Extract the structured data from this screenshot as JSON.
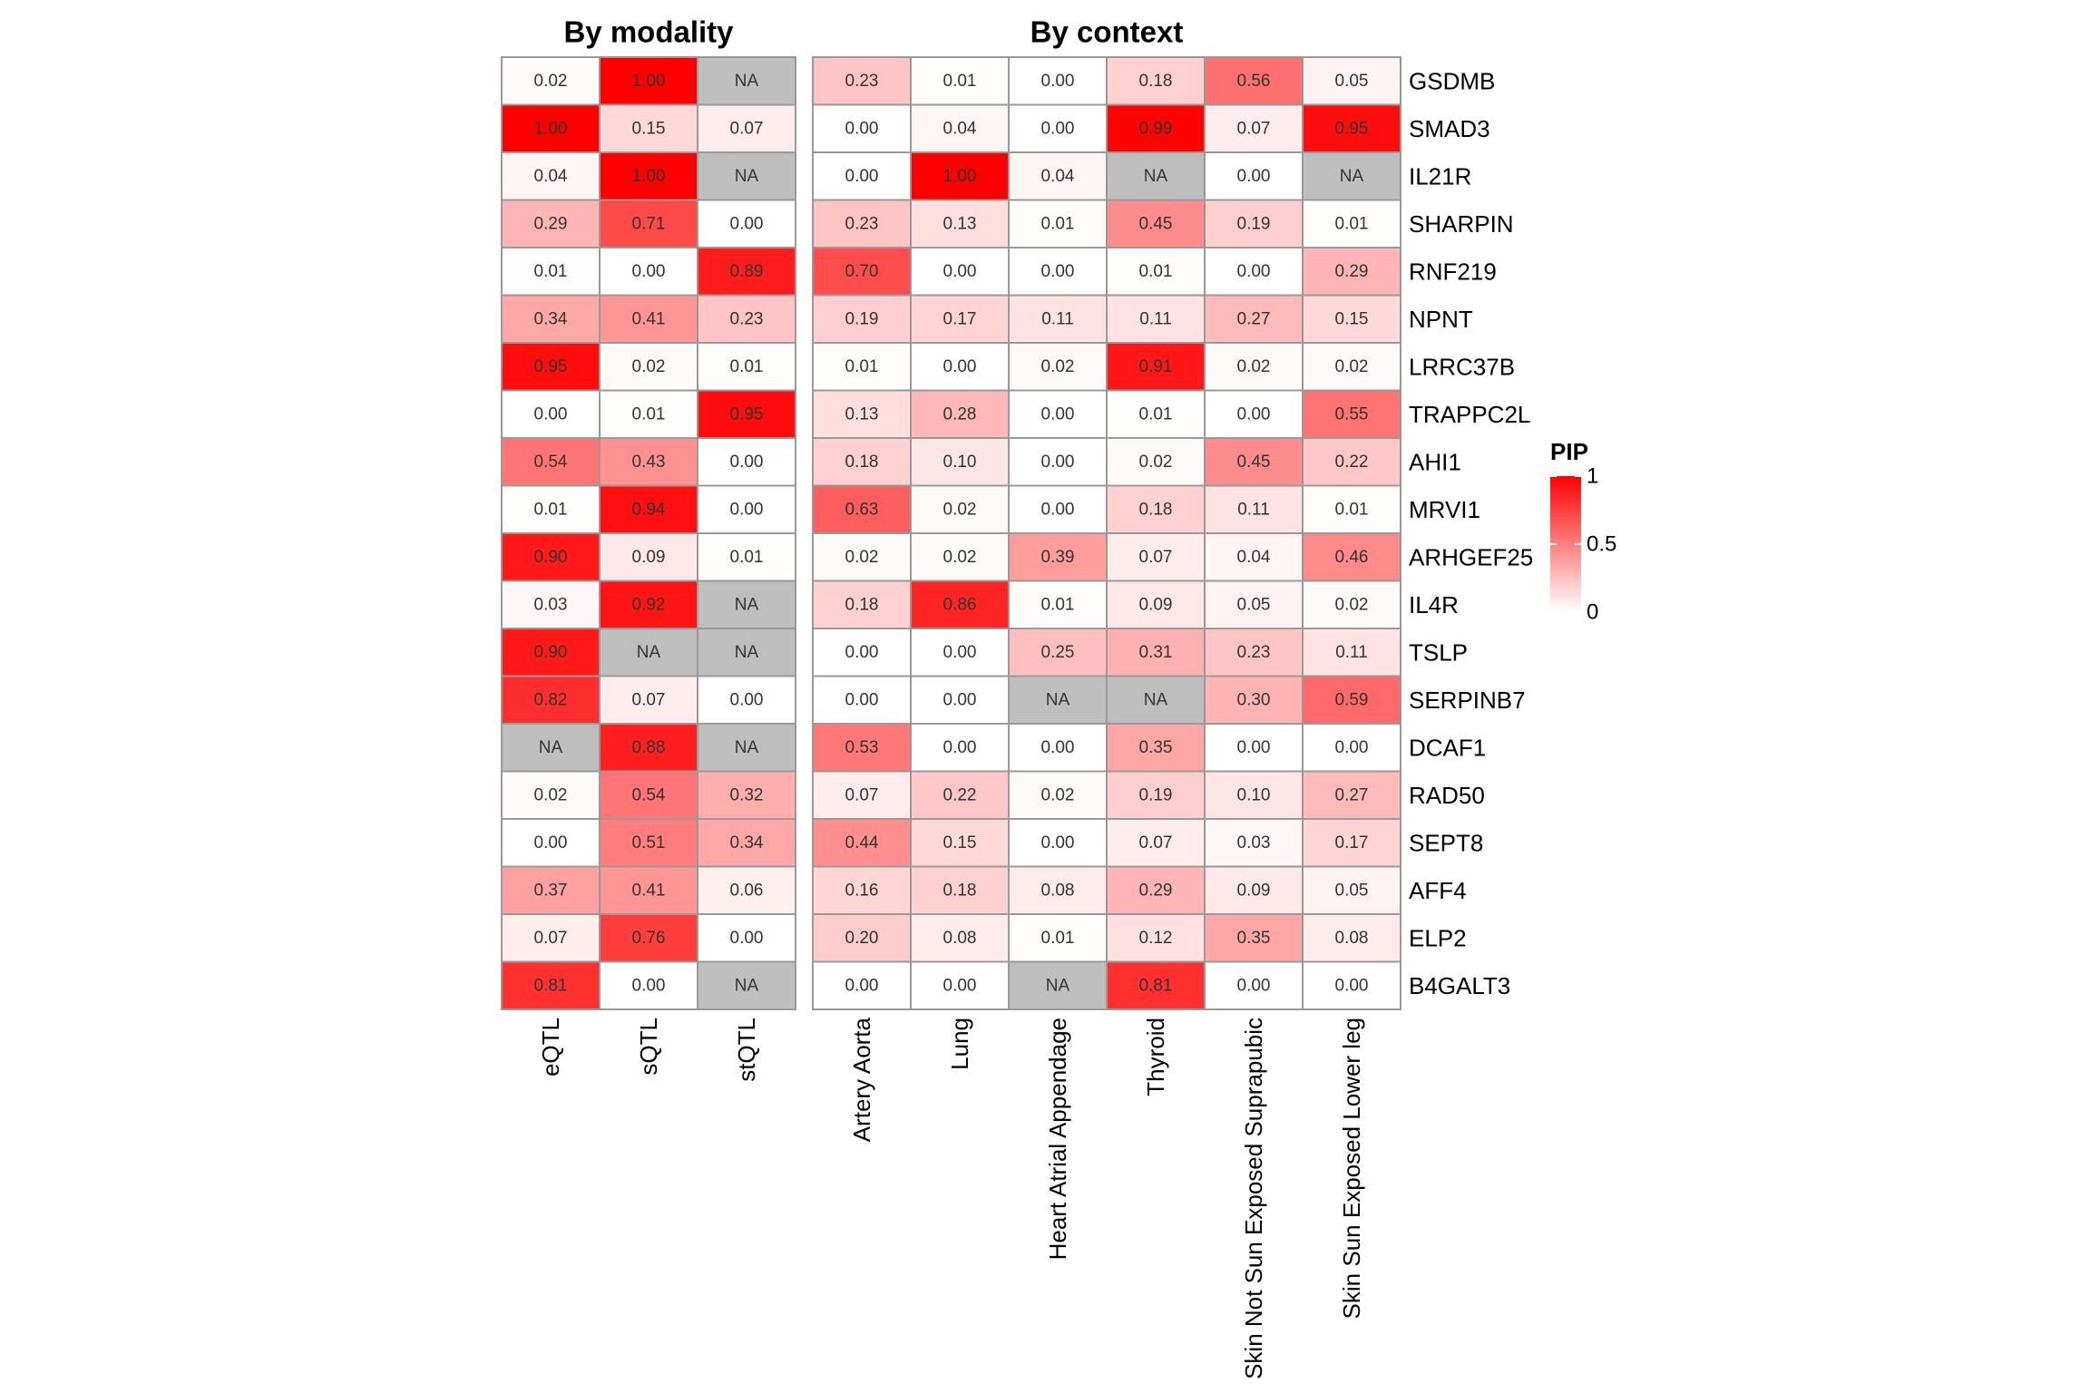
{
  "chart_data": {
    "type": "heatmap",
    "legend": {
      "title": "PIP",
      "ticks": [
        "1",
        "0.5",
        "0"
      ],
      "range": [
        0,
        1
      ],
      "low_color": "#ffffff",
      "high_color": "#ff0000",
      "na_color": "#bebebe",
      "placement": "right"
    },
    "genes": [
      "GSDMB",
      "SMAD3",
      "IL21R",
      "SHARPIN",
      "RNF219",
      "NPNT",
      "LRRC37B",
      "TRAPPC2L",
      "AHI1",
      "MRVI1",
      "ARHGEF25",
      "IL4R",
      "TSLP",
      "SERPINB7",
      "DCAF1",
      "RAD50",
      "SEPT8",
      "AFF4",
      "ELP2",
      "B4GALT3"
    ],
    "panels": [
      {
        "title": "By modality",
        "columns": [
          "eQTL",
          "sQTL",
          "stQTL"
        ],
        "values": [
          [
            "0.02",
            "1.00",
            "NA"
          ],
          [
            "1.00",
            "0.15",
            "0.07"
          ],
          [
            "0.04",
            "1.00",
            "NA"
          ],
          [
            "0.29",
            "0.71",
            "0.00"
          ],
          [
            "0.01",
            "0.00",
            "0.89"
          ],
          [
            "0.34",
            "0.41",
            "0.23"
          ],
          [
            "0.95",
            "0.02",
            "0.01"
          ],
          [
            "0.00",
            "0.01",
            "0.95"
          ],
          [
            "0.54",
            "0.43",
            "0.00"
          ],
          [
            "0.01",
            "0.94",
            "0.00"
          ],
          [
            "0.90",
            "0.09",
            "0.01"
          ],
          [
            "0.03",
            "0.92",
            "NA"
          ],
          [
            "0.90",
            "NA",
            "NA"
          ],
          [
            "0.82",
            "0.07",
            "0.00"
          ],
          [
            "NA",
            "0.88",
            "NA"
          ],
          [
            "0.02",
            "0.54",
            "0.32"
          ],
          [
            "0.00",
            "0.51",
            "0.34"
          ],
          [
            "0.37",
            "0.41",
            "0.06"
          ],
          [
            "0.07",
            "0.76",
            "0.00"
          ],
          [
            "0.81",
            "0.00",
            "NA"
          ]
        ]
      },
      {
        "title": "By context",
        "columns": [
          "Artery Aorta",
          "Lung",
          "Heart Atrial Appendage",
          "Thyroid",
          "Skin Not Sun Exposed Suprapubic",
          "Skin Sun Exposed Lower leg"
        ],
        "values": [
          [
            "0.23",
            "0.01",
            "0.00",
            "0.18",
            "0.56",
            "0.05"
          ],
          [
            "0.00",
            "0.04",
            "0.00",
            "0.99",
            "0.07",
            "0.95"
          ],
          [
            "0.00",
            "1.00",
            "0.04",
            "NA",
            "0.00",
            "NA"
          ],
          [
            "0.23",
            "0.13",
            "0.01",
            "0.45",
            "0.19",
            "0.01"
          ],
          [
            "0.70",
            "0.00",
            "0.00",
            "0.01",
            "0.00",
            "0.29"
          ],
          [
            "0.19",
            "0.17",
            "0.11",
            "0.11",
            "0.27",
            "0.15"
          ],
          [
            "0.01",
            "0.00",
            "0.02",
            "0.91",
            "0.02",
            "0.02"
          ],
          [
            "0.13",
            "0.28",
            "0.00",
            "0.01",
            "0.00",
            "0.55"
          ],
          [
            "0.18",
            "0.10",
            "0.00",
            "0.02",
            "0.45",
            "0.22"
          ],
          [
            "0.63",
            "0.02",
            "0.00",
            "0.18",
            "0.11",
            "0.01"
          ],
          [
            "0.02",
            "0.02",
            "0.39",
            "0.07",
            "0.04",
            "0.46"
          ],
          [
            "0.18",
            "0.86",
            "0.01",
            "0.09",
            "0.05",
            "0.02"
          ],
          [
            "0.00",
            "0.00",
            "0.25",
            "0.31",
            "0.23",
            "0.11"
          ],
          [
            "0.00",
            "0.00",
            "NA",
            "NA",
            "0.30",
            "0.59"
          ],
          [
            "0.53",
            "0.00",
            "0.00",
            "0.35",
            "0.00",
            "0.00"
          ],
          [
            "0.07",
            "0.22",
            "0.02",
            "0.19",
            "0.10",
            "0.27"
          ],
          [
            "0.44",
            "0.15",
            "0.00",
            "0.07",
            "0.03",
            "0.17"
          ],
          [
            "0.16",
            "0.18",
            "0.08",
            "0.29",
            "0.09",
            "0.05"
          ],
          [
            "0.20",
            "0.08",
            "0.01",
            "0.12",
            "0.35",
            "0.08"
          ],
          [
            "0.00",
            "0.00",
            "NA",
            "0.81",
            "0.00",
            "0.00"
          ]
        ]
      }
    ]
  }
}
